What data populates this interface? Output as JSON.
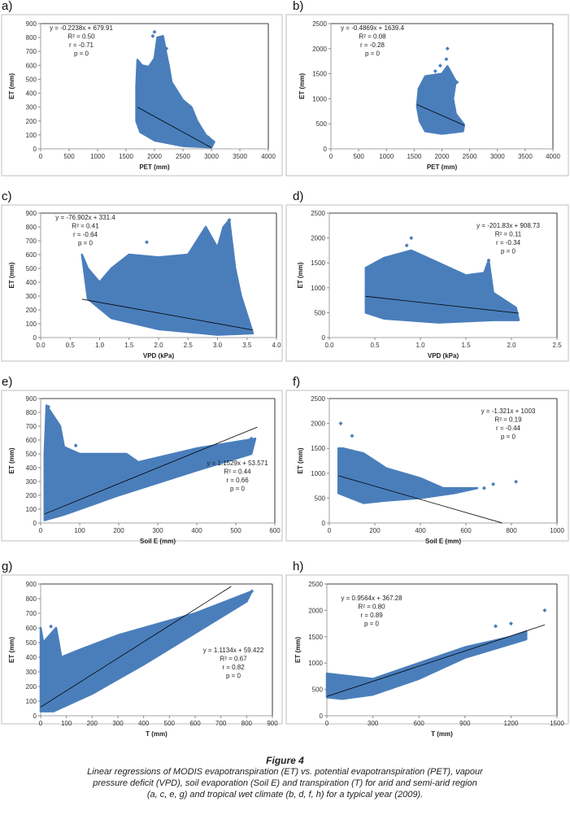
{
  "figure": {
    "title": "Figure 4",
    "caption_lines": [
      "Linear regressions of MODIS evapotranspiration (ET) vs. potential evapotranspiration (PET), vapour",
      "pressure deficit (VPD), soil evaporation (Soil E) and transpiration (T) for arid and semi-arid region",
      "(a, c, e, g) and tropical wet climate (b, d, f, h) for a typical year (2009)."
    ]
  },
  "colors": {
    "points": "#4a7ebb",
    "line": "#000000",
    "frame": "#bfbfbf"
  },
  "chart_data": [
    {
      "panel": "a)",
      "type": "scatter",
      "xlabel": "PET (mm)",
      "ylabel": "ET (mm)",
      "xlim": [
        0,
        4000
      ],
      "ylim": [
        0,
        900
      ],
      "xticks": [
        "0",
        "500",
        "1000",
        "1500",
        "2000",
        "2500",
        "3000",
        "3500",
        "4000"
      ],
      "yticks": [
        "0",
        "100",
        "200",
        "300",
        "400",
        "500",
        "600",
        "700",
        "800",
        "900"
      ],
      "annotations": [
        "y = -0.2238x + 679.91",
        "R² = 0.50",
        "r = -0.71",
        "p = 0"
      ],
      "regression": {
        "slope": -0.2238,
        "intercept": 679.91,
        "x_range": [
          1700,
          3000
        ]
      },
      "cloud_outline": [
        [
          1680,
          450
        ],
        [
          1700,
          640
        ],
        [
          1780,
          600
        ],
        [
          1900,
          590
        ],
        [
          2000,
          650
        ],
        [
          2050,
          800
        ],
        [
          2150,
          810
        ],
        [
          2200,
          700
        ],
        [
          2250,
          600
        ],
        [
          2300,
          480
        ],
        [
          2500,
          350
        ],
        [
          2650,
          300
        ],
        [
          2750,
          200
        ],
        [
          2900,
          100
        ],
        [
          3050,
          50
        ],
        [
          3000,
          10
        ],
        [
          2500,
          20
        ],
        [
          2000,
          60
        ],
        [
          1750,
          120
        ],
        [
          1680,
          200
        ]
      ],
      "outliers": [
        [
          2000,
          840
        ],
        [
          1970,
          810
        ],
        [
          2210,
          720
        ],
        [
          2500,
          330
        ],
        [
          2950,
          80
        ]
      ]
    },
    {
      "panel": "b)",
      "type": "scatter",
      "xlabel": "PET (mm)",
      "ylabel": "ET (mm)",
      "xlim": [
        0,
        4000
      ],
      "ylim": [
        0,
        2500
      ],
      "xticks": [
        "0",
        "500",
        "1000",
        "1500",
        "2000",
        "2500",
        "3000",
        "3500",
        "4000"
      ],
      "yticks": [
        "0",
        "500",
        "1000",
        "1500",
        "2000",
        "2500"
      ],
      "annotations": [
        "y = -0.4869x + 1639.4",
        "R² = 0.08",
        "r = -0.28",
        "p = 0"
      ],
      "regression": {
        "slope": -0.4869,
        "intercept": 1639.4,
        "x_range": [
          1550,
          2400
        ]
      },
      "cloud_outline": [
        [
          1550,
          850
        ],
        [
          1580,
          1200
        ],
        [
          1700,
          1450
        ],
        [
          2000,
          1500
        ],
        [
          2100,
          1650
        ],
        [
          2250,
          1350
        ],
        [
          2200,
          1000
        ],
        [
          2250,
          700
        ],
        [
          2400,
          480
        ],
        [
          2380,
          350
        ],
        [
          2000,
          300
        ],
        [
          1700,
          350
        ],
        [
          1600,
          550
        ]
      ],
      "outliers": [
        [
          2100,
          2000
        ],
        [
          2080,
          1790
        ],
        [
          1970,
          1660
        ],
        [
          2270,
          1330
        ],
        [
          1880,
          1550
        ]
      ]
    },
    {
      "panel": "c)",
      "type": "scatter",
      "xlabel": "VPD (kPa)",
      "ylabel": "ET (mm)",
      "xlim": [
        0,
        4
      ],
      "ylim": [
        0,
        900
      ],
      "xticks": [
        "0.0",
        "0.5",
        "1.0",
        "1.5",
        "2.0",
        "2.5",
        "3.0",
        "3.5",
        "4.0"
      ],
      "yticks": [
        "0",
        "100",
        "200",
        "300",
        "400",
        "500",
        "600",
        "700",
        "800",
        "900"
      ],
      "annotations": [
        "y = -76.902x + 331.4",
        "R² = 0.41",
        "r = -0.64",
        "p = 0"
      ],
      "regression": {
        "slope": -76.902,
        "intercept": 331.4,
        "x_range": [
          0.7,
          3.6
        ]
      },
      "cloud_outline": [
        [
          0.7,
          600
        ],
        [
          0.8,
          500
        ],
        [
          1.0,
          400
        ],
        [
          1.2,
          500
        ],
        [
          1.5,
          600
        ],
        [
          2.0,
          580
        ],
        [
          2.5,
          600
        ],
        [
          2.8,
          800
        ],
        [
          3.0,
          650
        ],
        [
          3.1,
          800
        ],
        [
          3.2,
          850
        ],
        [
          3.3,
          500
        ],
        [
          3.4,
          300
        ],
        [
          3.55,
          100
        ],
        [
          3.6,
          30
        ],
        [
          3.0,
          20
        ],
        [
          2.0,
          60
        ],
        [
          1.2,
          140
        ],
        [
          0.8,
          280
        ]
      ],
      "outliers": [
        [
          1.8,
          690
        ],
        [
          3.2,
          850
        ],
        [
          2.8,
          790
        ]
      ]
    },
    {
      "panel": "d)",
      "type": "scatter",
      "xlabel": "VPD (kPa)",
      "ylabel": "ET (mm)",
      "xlim": [
        0,
        2.5
      ],
      "ylim": [
        0,
        2500
      ],
      "xticks": [
        "0.0",
        "0.5",
        "1.0",
        "1.5",
        "2.0",
        "2.5"
      ],
      "yticks": [
        "0",
        "500",
        "1000",
        "1500",
        "2000",
        "2500"
      ],
      "annotations": [
        "y = -201.83x + 908.73",
        "R² = 0.11",
        "r = -0.34",
        "p = 0"
      ],
      "regression": {
        "slope": -201.83,
        "intercept": 908.73,
        "x_range": [
          0.4,
          2.08
        ]
      },
      "cloud_outline": [
        [
          0.4,
          1400
        ],
        [
          0.6,
          1600
        ],
        [
          0.9,
          1750
        ],
        [
          1.2,
          1500
        ],
        [
          1.5,
          1250
        ],
        [
          1.7,
          1300
        ],
        [
          1.75,
          1550
        ],
        [
          1.8,
          900
        ],
        [
          2.05,
          600
        ],
        [
          2.08,
          350
        ],
        [
          1.8,
          350
        ],
        [
          1.2,
          300
        ],
        [
          0.6,
          380
        ],
        [
          0.4,
          500
        ]
      ],
      "outliers": [
        [
          0.9,
          2000
        ],
        [
          0.85,
          1850
        ],
        [
          1.75,
          1550
        ]
      ]
    },
    {
      "panel": "e)",
      "type": "scatter",
      "xlabel": "Soil E (mm)",
      "ylabel": "ET (mm)",
      "xlim": [
        0,
        600
      ],
      "ylim": [
        0,
        900
      ],
      "xticks": [
        "0",
        "100",
        "200",
        "300",
        "400",
        "500",
        "600"
      ],
      "yticks": [
        "0",
        "100",
        "200",
        "300",
        "400",
        "500",
        "600",
        "700",
        "800",
        "900"
      ],
      "annotations": [
        "y = 1.1529x + 53.571",
        "R² = 0.44",
        "r = 0.66",
        "p = 0"
      ],
      "regression": {
        "slope": 1.1529,
        "intercept": 53.571,
        "x_range": [
          10,
          555
        ]
      },
      "cloud_outline": [
        [
          15,
          850
        ],
        [
          50,
          700
        ],
        [
          60,
          550
        ],
        [
          100,
          500
        ],
        [
          220,
          500
        ],
        [
          250,
          440
        ],
        [
          400,
          540
        ],
        [
          550,
          610
        ],
        [
          540,
          500
        ],
        [
          400,
          380
        ],
        [
          200,
          200
        ],
        [
          60,
          60
        ],
        [
          10,
          20
        ],
        [
          10,
          500
        ]
      ],
      "outliers": [
        [
          20,
          840
        ],
        [
          540,
          610
        ],
        [
          90,
          560
        ]
      ]
    },
    {
      "panel": "f)",
      "type": "scatter",
      "xlabel": "Soil E (mm)",
      "ylabel": "ET (mm)",
      "xlim": [
        0,
        1000
      ],
      "ylim": [
        0,
        2500
      ],
      "xticks": [
        "0",
        "200",
        "400",
        "600",
        "800",
        "1000"
      ],
      "yticks": [
        "0",
        "500",
        "1000",
        "1500",
        "2000",
        "2500"
      ],
      "annotations": [
        "y = -1.321x + 1003",
        "R² = 0.19",
        "r = -0.44",
        "p = 0"
      ],
      "regression": {
        "slope": -1.321,
        "intercept": 1003,
        "x_range": [
          40,
          760
        ]
      },
      "cloud_outline": [
        [
          40,
          1500
        ],
        [
          60,
          1500
        ],
        [
          150,
          1400
        ],
        [
          250,
          1100
        ],
        [
          400,
          900
        ],
        [
          500,
          700
        ],
        [
          650,
          700
        ],
        [
          550,
          600
        ],
        [
          400,
          500
        ],
        [
          250,
          450
        ],
        [
          150,
          400
        ],
        [
          40,
          600
        ]
      ],
      "outliers": [
        [
          50,
          2000
        ],
        [
          100,
          1750
        ],
        [
          720,
          780
        ],
        [
          820,
          830
        ],
        [
          680,
          700
        ]
      ]
    },
    {
      "panel": "g)",
      "type": "scatter",
      "xlabel": "T (mm)",
      "ylabel": "ET (mm)",
      "xlim": [
        0,
        900
      ],
      "ylim": [
        0,
        900
      ],
      "xticks": [
        "0",
        "100",
        "200",
        "300",
        "400",
        "500",
        "600",
        "700",
        "800",
        "900"
      ],
      "yticks": [
        "0",
        "100",
        "200",
        "300",
        "400",
        "500",
        "600",
        "700",
        "800",
        "900"
      ],
      "annotations": [
        "y = 1.1134x + 59.422",
        "R² = 0.67",
        "r = 0.82",
        "p = 0"
      ],
      "regression": {
        "slope": 1.1134,
        "intercept": 59.422,
        "x_range": [
          0,
          740
        ]
      },
      "cloud_outline": [
        [
          0,
          600
        ],
        [
          10,
          500
        ],
        [
          60,
          600
        ],
        [
          80,
          400
        ],
        [
          150,
          450
        ],
        [
          300,
          550
        ],
        [
          400,
          600
        ],
        [
          600,
          700
        ],
        [
          820,
          850
        ],
        [
          800,
          780
        ],
        [
          400,
          350
        ],
        [
          200,
          150
        ],
        [
          50,
          30
        ],
        [
          0,
          30
        ]
      ],
      "outliers": [
        [
          820,
          850
        ],
        [
          40,
          610
        ]
      ]
    },
    {
      "panel": "h)",
      "type": "scatter",
      "xlabel": "T (mm)",
      "ylabel": "ET (mm)",
      "xlim": [
        0,
        1500
      ],
      "ylim": [
        0,
        2500
      ],
      "xticks": [
        "0",
        "300",
        "600",
        "900",
        "1200",
        "1500"
      ],
      "yticks": [
        "0",
        "500",
        "1000",
        "1500",
        "2000",
        "2500"
      ],
      "annotations": [
        "y = 0.9564x + 367.28",
        "R² = 0.80",
        "r = 0.89",
        "p = 0"
      ],
      "regression": {
        "slope": 0.9564,
        "intercept": 367.28,
        "x_range": [
          0,
          1420
        ]
      },
      "cloud_outline": [
        [
          0,
          800
        ],
        [
          300,
          700
        ],
        [
          600,
          1000
        ],
        [
          900,
          1300
        ],
        [
          1200,
          1500
        ],
        [
          1300,
          1600
        ],
        [
          1300,
          1450
        ],
        [
          900,
          1100
        ],
        [
          600,
          700
        ],
        [
          300,
          400
        ],
        [
          100,
          320
        ],
        [
          0,
          350
        ]
      ],
      "outliers": [
        [
          1420,
          2000
        ],
        [
          1200,
          1750
        ],
        [
          1100,
          1700
        ]
      ]
    }
  ]
}
